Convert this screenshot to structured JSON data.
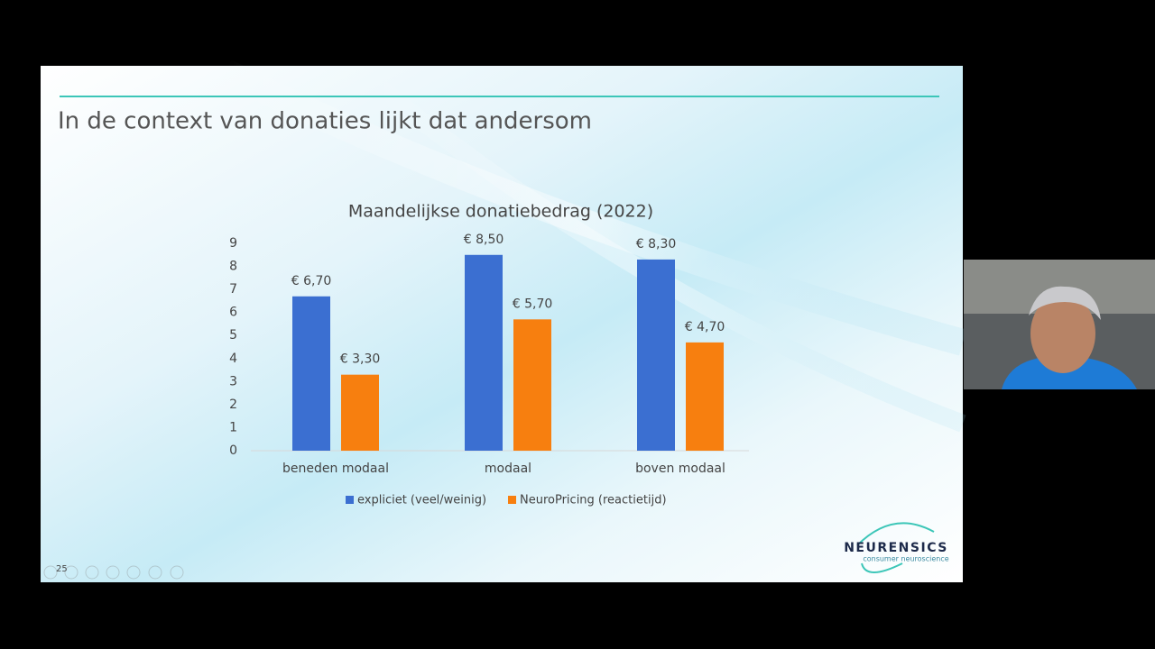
{
  "slide": {
    "title": "In de context van donaties lijkt dat andersom",
    "page_number": "25",
    "logo": "NEURENSICS",
    "logo_tagline": "consumer neuroscience"
  },
  "chart_data": {
    "type": "bar",
    "title": "Maandelijkse donatiebedrag (2022)",
    "categories": [
      "beneden modaal",
      "modaal",
      "boven modaal"
    ],
    "series": [
      {
        "name": "expliciet (veel/weinig)",
        "color": "#3b6fd1",
        "values": [
          6.7,
          8.5,
          8.3
        ],
        "value_labels": [
          "€ 6,70",
          "€ 8,50",
          "€ 8,30"
        ]
      },
      {
        "name": "NeuroPricing (reactietijd)",
        "color": "#f77f0f",
        "values": [
          3.3,
          5.7,
          4.7
        ],
        "value_labels": [
          "€ 3,30",
          "€ 5,70",
          "€ 4,70"
        ]
      }
    ],
    "ylim": [
      0,
      9
    ],
    "yticks": [
      0,
      1,
      2,
      3,
      4,
      5,
      6,
      7,
      8,
      9
    ],
    "grid": false,
    "legend": "bottom"
  }
}
